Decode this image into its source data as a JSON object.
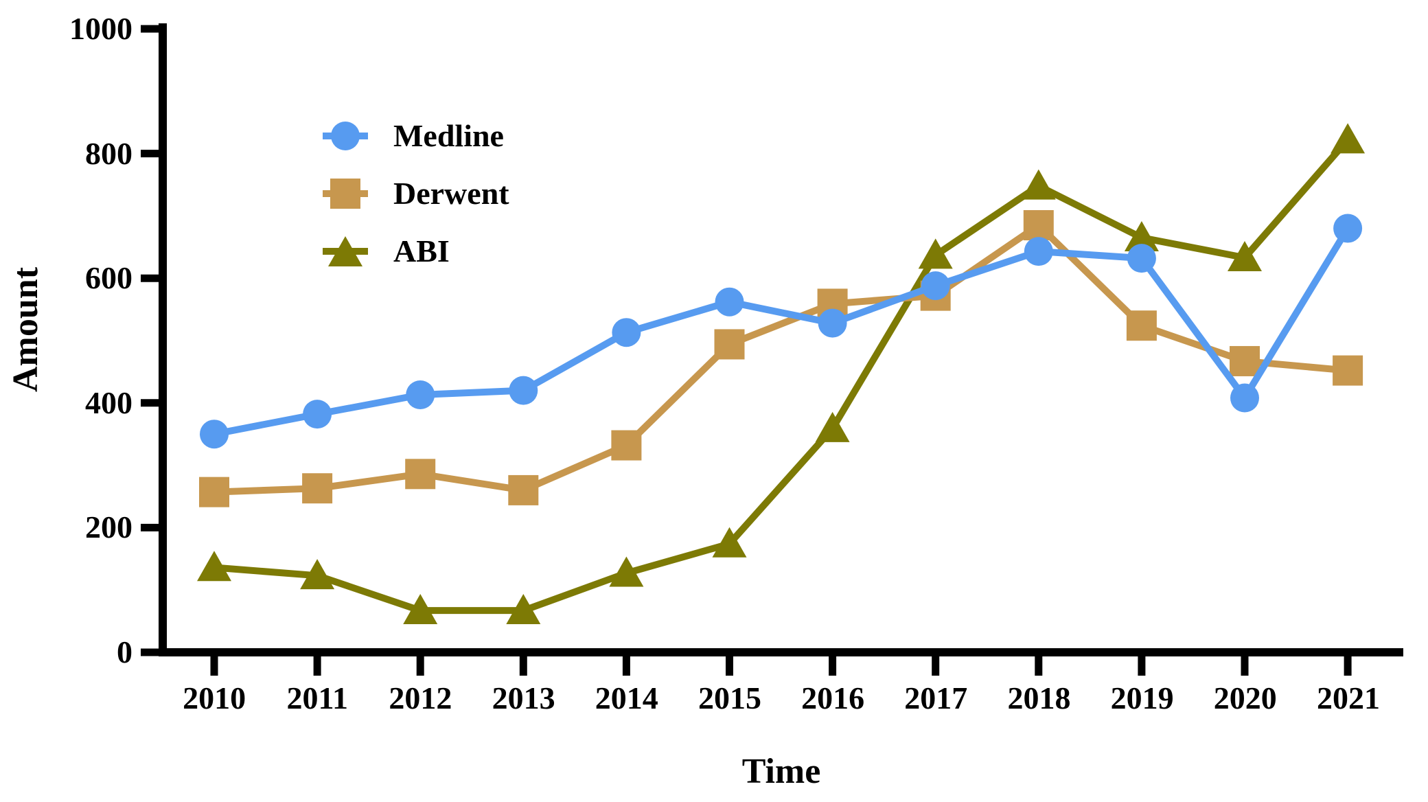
{
  "chart_data": {
    "type": "line",
    "title": "",
    "xlabel": "Time",
    "ylabel": "Amount",
    "categories": [
      "2010",
      "2011",
      "2012",
      "2013",
      "2014",
      "2015",
      "2016",
      "2017",
      "2018",
      "2019",
      "2020",
      "2021"
    ],
    "series": [
      {
        "name": "Medline",
        "marker": "circle",
        "color": "#579BF0",
        "values": [
          350,
          382,
          413,
          420,
          513,
          562,
          528,
          588,
          643,
          632,
          408,
          680
        ]
      },
      {
        "name": "Derwent",
        "marker": "square",
        "color": "#C7974E",
        "values": [
          257,
          263,
          286,
          260,
          332,
          494,
          559,
          572,
          685,
          524,
          467,
          452
        ]
      },
      {
        "name": "ABI",
        "marker": "triangle",
        "color": "#7D7A05",
        "values": [
          136,
          123,
          67,
          67,
          127,
          174,
          359,
          637,
          748,
          665,
          633,
          822
        ]
      }
    ],
    "ylim": [
      0,
      1000
    ],
    "yticks": [
      0,
      200,
      400,
      600,
      800,
      1000
    ],
    "grid": false,
    "legend_position": "upper-left-inside",
    "axis_color": "#000000"
  }
}
